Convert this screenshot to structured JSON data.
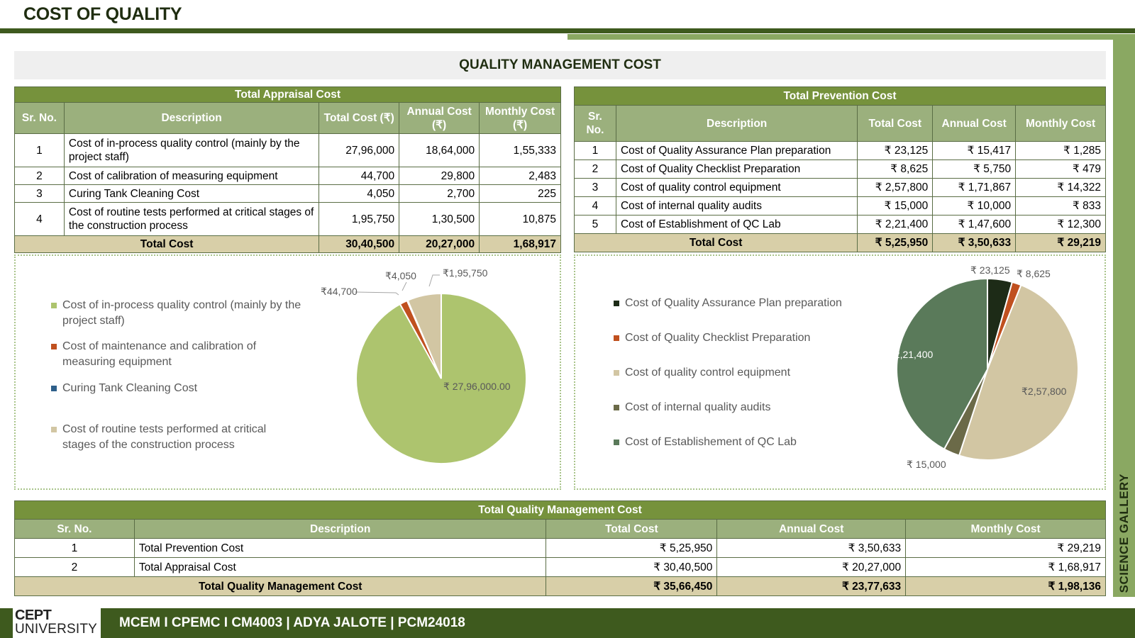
{
  "page": {
    "title": "COST OF QUALITY",
    "section_title": "QUALITY MANAGEMENT COST",
    "side_label": "SCIENCE GALLERY"
  },
  "appraisal": {
    "caption": "Total Appraisal Cost",
    "headers": {
      "sr": "Sr. No.",
      "desc": "Description",
      "total": "Total Cost (₹)",
      "annual": "Annual Cost (₹)",
      "monthly": "Monthly Cost (₹)"
    },
    "rows": [
      {
        "sr": "1",
        "desc": "Cost of in-process quality control (mainly by the project staff)",
        "total": "27,96,000",
        "annual": "18,64,000",
        "monthly": "1,55,333"
      },
      {
        "sr": "2",
        "desc": "Cost of calibration of measuring equipment",
        "total": "44,700",
        "annual": "29,800",
        "monthly": "2,483"
      },
      {
        "sr": "3",
        "desc": "Curing Tank Cleaning Cost",
        "total": "4,050",
        "annual": "2,700",
        "monthly": "225"
      },
      {
        "sr": "4",
        "desc": "Cost of routine tests performed at critical stages of the construction process",
        "total": "1,95,750",
        "annual": "1,30,500",
        "monthly": "10,875"
      }
    ],
    "total": {
      "label": "Total Cost",
      "total": "30,40,500",
      "annual": "20,27,000",
      "monthly": "1,68,917"
    }
  },
  "prevention": {
    "caption": "Total Prevention Cost",
    "headers": {
      "sr": "Sr. No.",
      "desc": "Description",
      "total": "Total Cost",
      "annual": "Annual Cost",
      "monthly": "Monthly Cost"
    },
    "rows": [
      {
        "sr": "1",
        "desc": "Cost of Quality Assurance Plan preparation",
        "total": "₹ 23,125",
        "annual": "₹ 15,417",
        "monthly": "₹ 1,285"
      },
      {
        "sr": "2",
        "desc": "Cost of Quality Checklist Preparation",
        "total": "₹ 8,625",
        "annual": "₹ 5,750",
        "monthly": "₹ 479"
      },
      {
        "sr": "3",
        "desc": "Cost of quality control equipment",
        "total": "₹ 2,57,800",
        "annual": "₹ 1,71,867",
        "monthly": "₹ 14,322"
      },
      {
        "sr": "4",
        "desc": "Cost of internal quality audits",
        "total": "₹ 15,000",
        "annual": "₹ 10,000",
        "monthly": "₹ 833"
      },
      {
        "sr": "5",
        "desc": "Cost of Establishment of QC Lab",
        "total": "₹ 2,21,400",
        "annual": "₹ 1,47,600",
        "monthly": "₹ 12,300"
      }
    ],
    "total": {
      "label": "Total Cost",
      "total": "₹ 5,25,950",
      "annual": "₹ 3,50,633",
      "monthly": "₹ 29,219"
    }
  },
  "summary": {
    "caption": "Total Quality Management Cost",
    "headers": {
      "sr": "Sr. No.",
      "desc": "Description",
      "total": "Total Cost",
      "annual": "Annual Cost",
      "monthly": "Monthly Cost"
    },
    "rows": [
      {
        "sr": "1",
        "desc": "Total Prevention Cost",
        "total": "₹ 5,25,950",
        "annual": "₹ 3,50,633",
        "monthly": "₹ 29,219"
      },
      {
        "sr": "2",
        "desc": "Total Appraisal Cost",
        "total": "₹ 30,40,500",
        "annual": "₹ 20,27,000",
        "monthly": "₹ 1,68,917"
      }
    ],
    "total": {
      "label": "Total Quality Management Cost",
      "total": "₹ 35,66,450",
      "annual": "₹ 23,77,633",
      "monthly": "₹ 1,98,136"
    }
  },
  "footer": {
    "logo_top": "CEPT",
    "logo_bottom": "UNIVERSITY",
    "text": "MCEM I CPEMC I CM4003 | ADYA JALOTE | PCM24018"
  },
  "chart_data": [
    {
      "type": "pie",
      "categories": [
        "Cost of in-process quality control (mainly by the project staff)",
        "Cost of maintenance and calibration of measuring equipment",
        "Curing Tank Cleaning Cost",
        "Cost of routine tests performed at critical stages of the construction process"
      ],
      "values": [
        2796000,
        44700,
        4050,
        195750
      ],
      "data_labels": [
        "₹ 27,96,000.00",
        "₹44,700",
        "₹4,050",
        "₹1,95,750"
      ],
      "colors": [
        "#adc46e",
        "#c0501f",
        "#2e5f8a",
        "#d2c6a3"
      ],
      "legend": "left"
    },
    {
      "type": "pie",
      "categories": [
        "Cost of Quality Assurance Plan preparation",
        "Cost of Quality Checklist Preparation",
        "Cost of quality control equipment",
        "Cost of internal quality audits",
        "Cost of Establishement of QC Lab"
      ],
      "values": [
        23125,
        8625,
        257800,
        15000,
        221400
      ],
      "data_labels": [
        "₹ 23,125",
        "₹ 8,625",
        "₹2,57,800",
        "₹ 15,000",
        "₹ 2,21,400"
      ],
      "colors": [
        "#1d2b17",
        "#c0501f",
        "#d2c6a3",
        "#6b6a48",
        "#5a7a5a"
      ],
      "legend": "left"
    }
  ]
}
